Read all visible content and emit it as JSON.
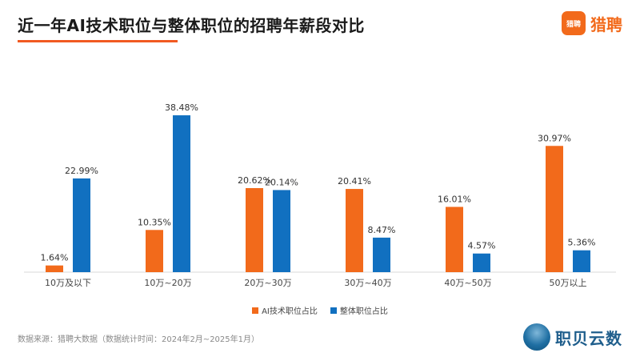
{
  "header": {
    "title": "近一年AI技术职位与整体职位的招聘年薪段对比"
  },
  "brand": {
    "logo_text": "猎聘",
    "name": "猎聘"
  },
  "footer": {
    "source": "数据来源：猎聘大数据（数据统计时间：2024年2月~2025年1月）",
    "watermark_name": "职贝云数"
  },
  "chart_data": {
    "type": "bar",
    "title": "近一年AI技术职位与整体职位的招聘年薪段对比",
    "categories": [
      "10万及以下",
      "10万~20万",
      "20万~30万",
      "30万~40万",
      "40万~50万",
      "50万以上"
    ],
    "series": [
      {
        "name": "AI技术职位占比",
        "color": "#f26a1b",
        "values": [
          1.64,
          10.35,
          20.62,
          20.41,
          16.01,
          30.97
        ],
        "labels": [
          "1.64%",
          "10.35%",
          "20.62%",
          "20.41%",
          "16.01%",
          "30.97%"
        ]
      },
      {
        "name": "整体职位占比",
        "color": "#1170c0",
        "values": [
          22.99,
          38.48,
          20.14,
          8.47,
          4.57,
          5.36
        ],
        "labels": [
          "22.99%",
          "38.48%",
          "20.14%",
          "8.47%",
          "4.57%",
          "5.36%"
        ]
      }
    ],
    "ylim": [
      0,
      40
    ],
    "grid": false,
    "legend_position": "bottom-center"
  }
}
